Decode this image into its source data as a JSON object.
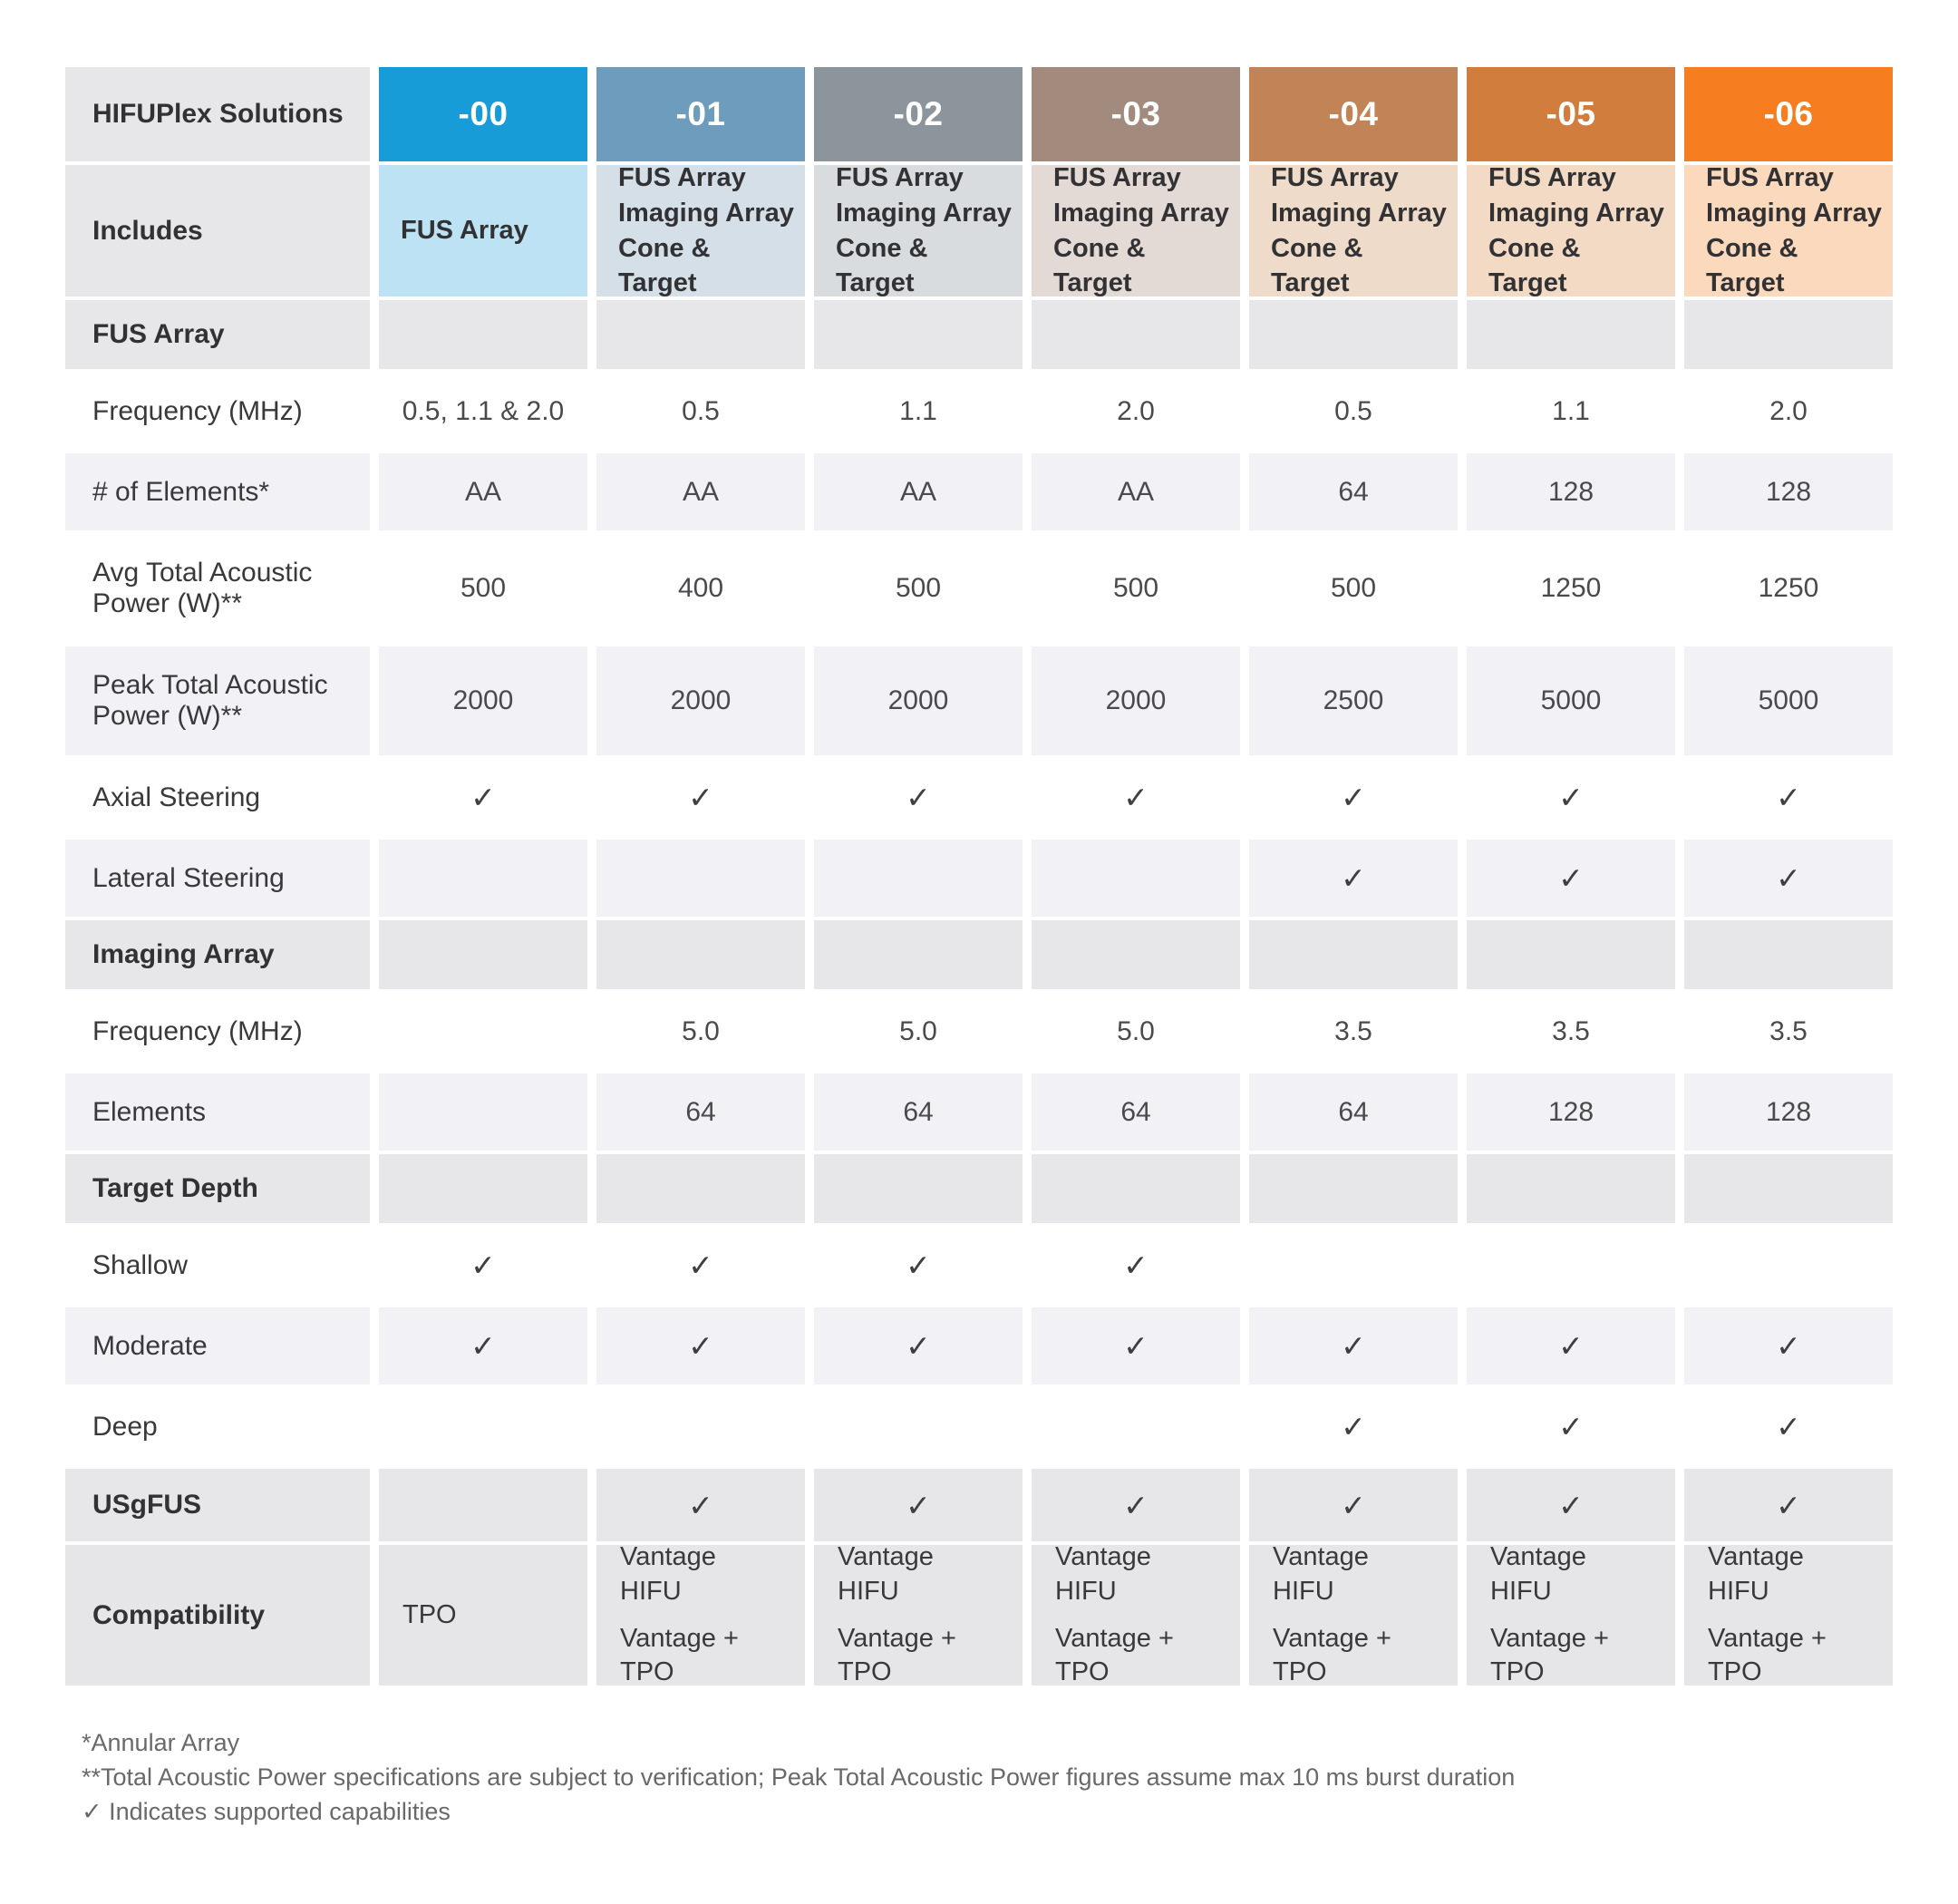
{
  "title": "HIFUPlex Solutions comparison table",
  "colors": {
    "section_gray": "#e7e7ea",
    "stripe_gray": "#f2f2f6",
    "compat_gray": "#e6e6e9",
    "white": "#ffffff",
    "header_text": "#ffffff",
    "label_text": "#323235",
    "value_text": "#4a4a4d",
    "footnote_text": "#69696c"
  },
  "check_glyph": "✓",
  "table": {
    "corner_label": "HIFUPlex Solutions",
    "includes_label": "Includes",
    "columns": [
      {
        "id": "-00",
        "header_color": "#189cd8",
        "tint_color": "#bce2f3",
        "includes": [
          "FUS Array"
        ]
      },
      {
        "id": "-01",
        "header_color": "#6d9cbc",
        "tint_color": "#d4dfe7",
        "includes": [
          "FUS Array",
          "Imaging Array",
          "Cone & Target"
        ]
      },
      {
        "id": "-02",
        "header_color": "#8c959c",
        "tint_color": "#d9dcde",
        "includes": [
          "FUS Array",
          "Imaging Array",
          "Cone & Target"
        ]
      },
      {
        "id": "-03",
        "header_color": "#a28a7d",
        "tint_color": "#e3dad6",
        "includes": [
          "FUS Array",
          "Imaging Array",
          "Cone & Target"
        ]
      },
      {
        "id": "-04",
        "header_color": "#c28456",
        "tint_color": "#eedbc9",
        "includes": [
          "FUS Array",
          "Imaging Array",
          "Cone & Target"
        ]
      },
      {
        "id": "-05",
        "header_color": "#d07d3e",
        "tint_color": "#f3dac5",
        "includes": [
          "FUS Array",
          "Imaging Array",
          "Cone & Target"
        ]
      },
      {
        "id": "-06",
        "header_color": "#f67d20",
        "tint_color": "#fbd9bd",
        "includes": [
          "FUS Array",
          "Imaging Array",
          "Cone & Target"
        ]
      }
    ],
    "rows": [
      {
        "type": "section",
        "label": "FUS Array",
        "values": [
          "",
          "",
          "",
          "",
          "",
          "",
          ""
        ]
      },
      {
        "type": "data",
        "label": "Frequency (MHz)",
        "values": [
          "0.5, 1.1 & 2.0",
          "0.5",
          "1.1",
          "2.0",
          "0.5",
          "1.1",
          "2.0"
        ]
      },
      {
        "type": "data",
        "stripe": true,
        "label": "# of Elements*",
        "values": [
          "AA",
          "AA",
          "AA",
          "AA",
          "64",
          "128",
          "128"
        ]
      },
      {
        "type": "data",
        "tall": true,
        "label": "Avg Total Acoustic Power (W)**",
        "values": [
          "500",
          "400",
          "500",
          "500",
          "500",
          "1250",
          "1250"
        ]
      },
      {
        "type": "data",
        "tall": true,
        "stripe": true,
        "label": "Peak Total Acoustic Power (W)**",
        "values": [
          "2000",
          "2000",
          "2000",
          "2000",
          "2500",
          "5000",
          "5000"
        ]
      },
      {
        "type": "data",
        "label": "Axial Steering",
        "values": [
          "✓",
          "✓",
          "✓",
          "✓",
          "✓",
          "✓",
          "✓"
        ]
      },
      {
        "type": "data",
        "stripe": true,
        "label": "Lateral Steering",
        "values": [
          "",
          "",
          "",
          "",
          "✓",
          "✓",
          "✓"
        ]
      },
      {
        "type": "section",
        "label": "Imaging Array",
        "values": [
          "",
          "",
          "",
          "",
          "",
          "",
          ""
        ]
      },
      {
        "type": "data",
        "label": "Frequency (MHz)",
        "values": [
          "",
          "5.0",
          "5.0",
          "5.0",
          "3.5",
          "3.5",
          "3.5"
        ]
      },
      {
        "type": "data",
        "stripe": true,
        "label": "Elements",
        "values": [
          "",
          "64",
          "64",
          "64",
          "64",
          "128",
          "128"
        ]
      },
      {
        "type": "section",
        "label": "Target Depth",
        "values": [
          "",
          "",
          "",
          "",
          "",
          "",
          ""
        ]
      },
      {
        "type": "data",
        "label": "Shallow",
        "values": [
          "✓",
          "✓",
          "✓",
          "✓",
          "",
          "",
          ""
        ]
      },
      {
        "type": "data",
        "stripe": true,
        "label": "Moderate",
        "values": [
          "✓",
          "✓",
          "✓",
          "✓",
          "✓",
          "✓",
          "✓"
        ]
      },
      {
        "type": "data",
        "label": "Deep",
        "values": [
          "",
          "",
          "",
          "",
          "✓",
          "✓",
          "✓"
        ]
      },
      {
        "type": "section-data",
        "label": "USgFUS",
        "values": [
          "",
          "✓",
          "✓",
          "✓",
          "✓",
          "✓",
          "✓"
        ]
      },
      {
        "type": "compat",
        "label": "Compatibility",
        "values": [
          [
            "TPO"
          ],
          [
            "Vantage HIFU",
            "Vantage + TPO"
          ],
          [
            "Vantage HIFU",
            "Vantage + TPO"
          ],
          [
            "Vantage HIFU",
            "Vantage + TPO"
          ],
          [
            "Vantage HIFU",
            "Vantage + TPO"
          ],
          [
            "Vantage HIFU",
            "Vantage + TPO"
          ],
          [
            "Vantage HIFU",
            "Vantage + TPO"
          ]
        ]
      }
    ]
  },
  "footnotes": [
    "*Annular Array",
    "**Total Acoustic Power specifications are subject to verification; Peak Total Acoustic Power figures assume max 10 ms burst duration",
    "✓ Indicates supported capabilities"
  ]
}
